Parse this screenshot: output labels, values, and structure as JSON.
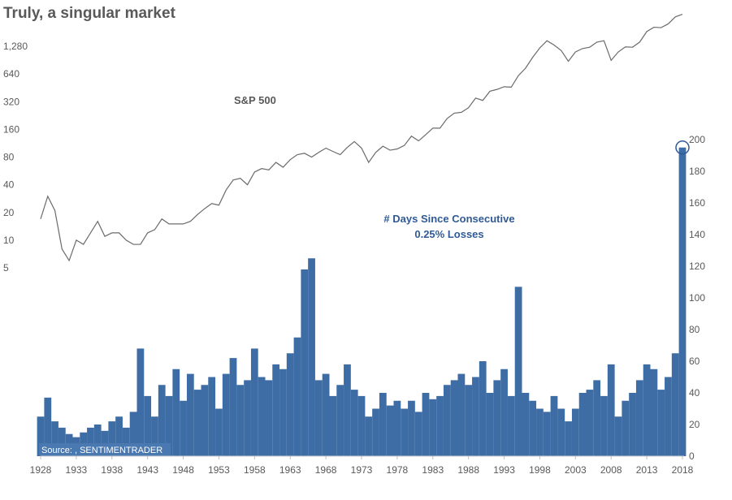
{
  "title": "Truly, a singular market",
  "chart_data": [
    {
      "type": "line",
      "series": [
        {
          "name": "S&P 500",
          "x": [
            1928,
            1929,
            1930,
            1931,
            1932,
            1933,
            1934,
            1935,
            1936,
            1937,
            1938,
            1939,
            1940,
            1941,
            1942,
            1943,
            1944,
            1945,
            1946,
            1947,
            1948,
            1949,
            1950,
            1951,
            1952,
            1953,
            1954,
            1955,
            1956,
            1957,
            1958,
            1959,
            1960,
            1961,
            1962,
            1963,
            1964,
            1965,
            1966,
            1967,
            1968,
            1969,
            1970,
            1971,
            1972,
            1973,
            1974,
            1975,
            1976,
            1977,
            1978,
            1979,
            1980,
            1981,
            1982,
            1983,
            1984,
            1985,
            1986,
            1987,
            1988,
            1989,
            1990,
            1991,
            1992,
            1993,
            1994,
            1995,
            1996,
            1997,
            1998,
            1999,
            2000,
            2001,
            2002,
            2003,
            2004,
            2005,
            2006,
            2007,
            2008,
            2009,
            2010,
            2011,
            2012,
            2013,
            2014,
            2015,
            2016,
            2017,
            2018
          ],
          "values": [
            17,
            30,
            21,
            8,
            6,
            10,
            9,
            12,
            16,
            11,
            12,
            12,
            10,
            9,
            9,
            12,
            13,
            17,
            15,
            15,
            15,
            16,
            19,
            22,
            25,
            24,
            35,
            45,
            47,
            40,
            55,
            60,
            58,
            70,
            62,
            75,
            85,
            88,
            80,
            90,
            100,
            92,
            85,
            102,
            118,
            100,
            70,
            90,
            105,
            95,
            98,
            107,
            135,
            120,
            140,
            165,
            165,
            210,
            240,
            245,
            275,
            350,
            330,
            415,
            435,
            465,
            460,
            615,
            740,
            970,
            1230,
            1470,
            1320,
            1150,
            880,
            1110,
            1210,
            1250,
            1420,
            1470,
            900,
            1110,
            1260,
            1250,
            1420,
            1850,
            2060,
            2040,
            2240,
            2670,
            2850
          ]
        }
      ],
      "ylim": [
        5,
        2850
      ],
      "yscale": "log",
      "yticks": [
        5,
        10,
        20,
        40,
        80,
        160,
        320,
        640,
        1280
      ],
      "ytick_labels": [
        "5",
        "10",
        "20",
        "40",
        "80",
        "160",
        "320",
        "640",
        "1,280"
      ],
      "annotation": "S&P 500",
      "color": "#6b6b6b"
    },
    {
      "type": "area",
      "series": [
        {
          "name": "# Days Since Consecutive 0.25% Losses",
          "x": [
            1928,
            1929,
            1930,
            1931,
            1932,
            1933,
            1934,
            1935,
            1936,
            1937,
            1938,
            1939,
            1940,
            1941,
            1942,
            1943,
            1944,
            1945,
            1946,
            1947,
            1948,
            1949,
            1950,
            1951,
            1952,
            1953,
            1954,
            1955,
            1956,
            1957,
            1958,
            1959,
            1960,
            1961,
            1962,
            1963,
            1964,
            1965,
            1966,
            1967,
            1968,
            1969,
            1970,
            1971,
            1972,
            1973,
            1974,
            1975,
            1976,
            1977,
            1978,
            1979,
            1980,
            1981,
            1982,
            1983,
            1984,
            1985,
            1986,
            1987,
            1988,
            1989,
            1990,
            1991,
            1992,
            1993,
            1994,
            1995,
            1996,
            1997,
            1998,
            1999,
            2000,
            2001,
            2002,
            2003,
            2004,
            2005,
            2006,
            2007,
            2008,
            2009,
            2010,
            2011,
            2012,
            2013,
            2014,
            2015,
            2016,
            2017,
            2018
          ],
          "values": [
            25,
            37,
            22,
            18,
            14,
            12,
            15,
            18,
            20,
            16,
            22,
            25,
            18,
            28,
            68,
            38,
            25,
            45,
            38,
            55,
            35,
            52,
            42,
            45,
            50,
            30,
            52,
            62,
            45,
            48,
            68,
            50,
            48,
            58,
            55,
            65,
            75,
            118,
            125,
            48,
            52,
            38,
            45,
            58,
            42,
            38,
            25,
            30,
            40,
            32,
            35,
            30,
            35,
            28,
            40,
            36,
            38,
            45,
            48,
            52,
            45,
            50,
            60,
            40,
            48,
            55,
            38,
            107,
            40,
            35,
            30,
            28,
            38,
            30,
            22,
            30,
            40,
            42,
            48,
            38,
            58,
            25,
            35,
            40,
            48,
            58,
            55,
            42,
            50,
            65,
            195
          ]
        }
      ],
      "ylim": [
        0,
        200
      ],
      "yticks": [
        0,
        20,
        40,
        60,
        80,
        100,
        120,
        140,
        160,
        180,
        200
      ],
      "annotation": [
        "# Days Since Consecutive",
        "0.25% Losses"
      ],
      "color": "#3e6da6",
      "highlight_color": "#2f5a95"
    }
  ],
  "x_axis": {
    "ticks": [
      1928,
      1933,
      1938,
      1943,
      1948,
      1953,
      1958,
      1963,
      1968,
      1973,
      1978,
      1983,
      1988,
      1993,
      1998,
      2003,
      2008,
      2013,
      2018
    ],
    "range": [
      1928,
      2018
    ]
  },
  "source_label": "Source: , SENTIMENTRADER"
}
